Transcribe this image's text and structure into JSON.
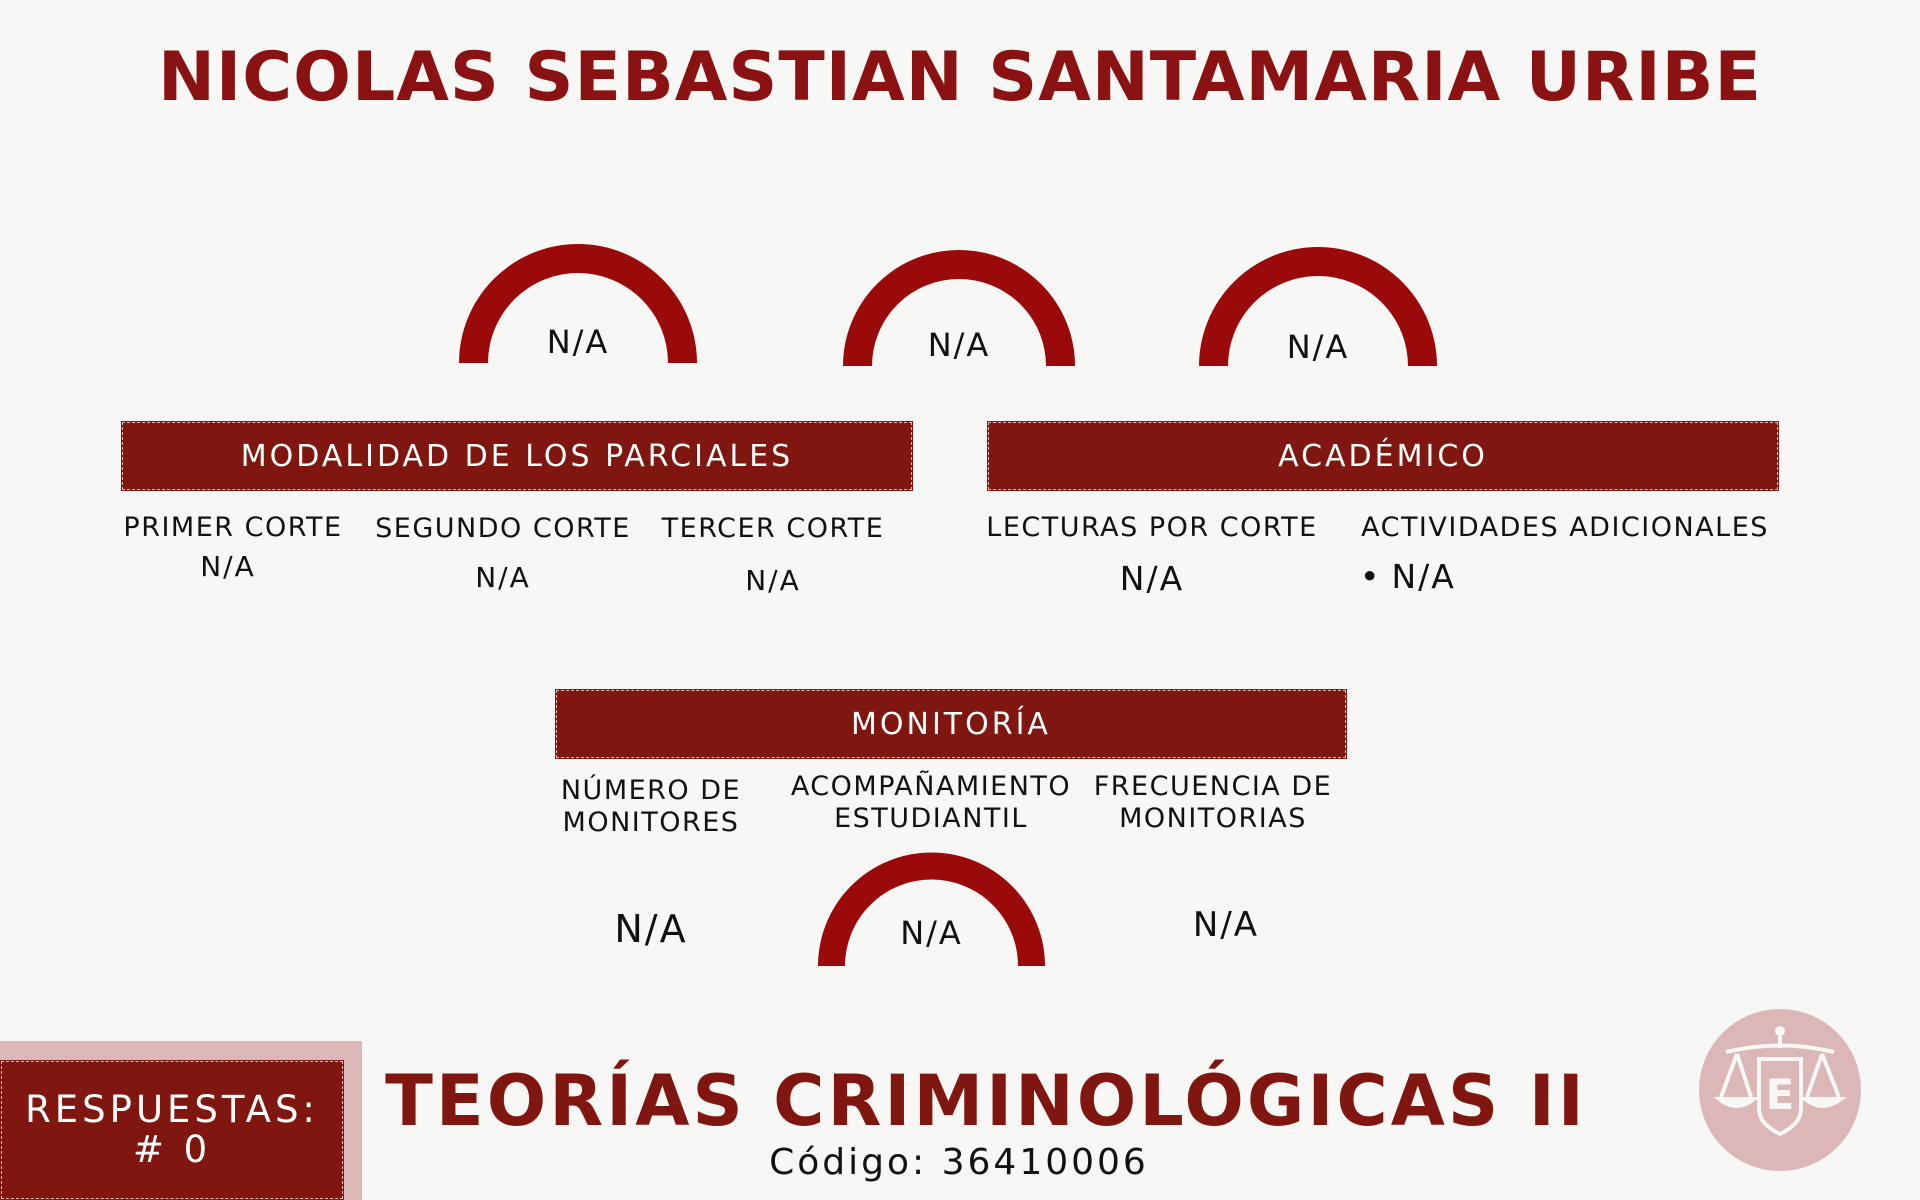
{
  "header": {
    "name": "NICOLAS SEBASTIAN SANTAMARIA URIBE"
  },
  "gauges": [
    {
      "value": "N/A"
    },
    {
      "value": "N/A"
    },
    {
      "value": "N/A"
    }
  ],
  "parciales": {
    "title": "MODALIDAD DE LOS PARCIALES",
    "items": [
      {
        "label": "PRIMER CORTE",
        "value": "N/A"
      },
      {
        "label": "SEGUNDO CORTE",
        "value": "N/A"
      },
      {
        "label": "TERCER CORTE",
        "value": "N/A"
      }
    ]
  },
  "academico": {
    "title": "ACADÉMICO",
    "lecturas": {
      "label": "LECTURAS POR CORTE",
      "value": "N/A"
    },
    "actividades": {
      "label": "ACTIVIDADES ADICIONALES",
      "bullet": "•",
      "value": "N/A"
    }
  },
  "monitoria": {
    "title": "MONITORÍA",
    "numero": {
      "label_1": "NÚMERO DE",
      "label_2": "MONITORES",
      "value": "N/A"
    },
    "acompanamiento": {
      "label_1": "ACOMPAÑAMIENTO",
      "label_2": "ESTUDIANTIL",
      "value": "N/A"
    },
    "frecuencia": {
      "label_1": "FRECUENCIA DE",
      "label_2": "MONITORIAS",
      "value": "N/A"
    }
  },
  "respuestas": {
    "label": "RESPUESTAS:",
    "count": "# 0"
  },
  "course": {
    "title": "TEORÍAS CRIMINOLÓGICAS II",
    "code": "Código: 36410006"
  },
  "logo": {
    "letter": "E",
    "icon": "scales-of-justice-icon"
  },
  "colors": {
    "primary": "#801610",
    "gauge": "#9b0a0a",
    "pink": "#dcb7b7",
    "background": "#f7f7f5"
  }
}
